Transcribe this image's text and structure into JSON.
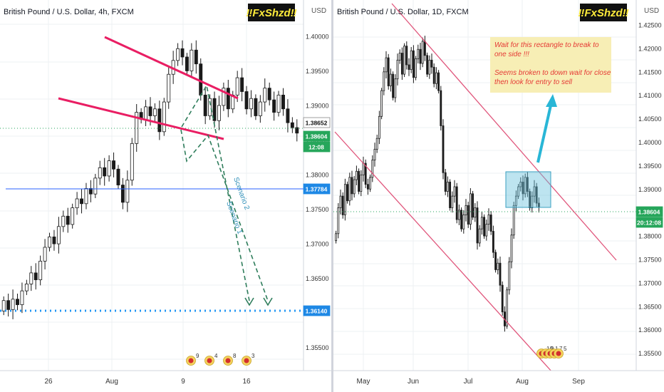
{
  "colors": {
    "candle": "#1a1a1a",
    "trendline": "#e91e63",
    "channel": "#e0557b",
    "scenario": "#2e7d5b",
    "blue_line": "#2962ff",
    "dotted_level": "#2196f3",
    "price_green": "#26a65b",
    "target_box": "#6cc4dd",
    "arrow": "#29b6d6",
    "note_bg": "#f7eeb5",
    "note_text": "#e53935",
    "watermark_bg": "#111111",
    "watermark_text": "#ffeb3b"
  },
  "left_panel": {
    "title": "British Pound / U.S. Dollar, 4h, FXCM",
    "watermark": "‼FxShzd‼",
    "currency": "USD",
    "scenario_1": "Scenario 1",
    "scenario_2": "Scenario 2",
    "event_badges": [
      "9",
      "4",
      "8",
      "3"
    ],
    "price_badges": [
      {
        "label": "1.38652",
        "kind": "white"
      },
      {
        "label": "1.38604",
        "kind": "green"
      },
      {
        "label": "12:08",
        "kind": "green"
      },
      {
        "label": "1.37784",
        "kind": "blue"
      },
      {
        "label": "1.36140",
        "kind": "blue"
      }
    ]
  },
  "right_panel": {
    "title": "British Pound / U.S. Dollar, 1D, FXCM",
    "watermark": "‼FxShzd‼",
    "currency": "USD",
    "note_lines": [
      "Wait for this rectangle to break to",
      "one side !!!",
      "",
      "Seems broken to down wait for close",
      "then look for entry to sell"
    ],
    "event_badges": [
      "10",
      "9",
      "1",
      "7",
      "5"
    ],
    "price_badges": [
      {
        "label": "1.38604",
        "kind": "green"
      },
      {
        "label": "20:12:08",
        "kind": "green"
      }
    ]
  },
  "chart_data": [
    {
      "type": "candlestick",
      "title": "British Pound / U.S. Dollar, 4h, FXCM",
      "x_ticks": [
        "26",
        "Aug",
        "9",
        "16"
      ],
      "y_ticks": [
        "1.40000",
        "1.39500",
        "1.39000",
        "1.38500",
        "1.38000",
        "1.37500",
        "1.37000",
        "1.36500",
        "1.36000",
        "1.35500"
      ],
      "ylim": [
        1.3525,
        1.404
      ],
      "levels": {
        "current": 1.38604,
        "prior": 1.38652,
        "horizontal_line": 1.37784,
        "target": 1.3614
      },
      "closes": [
        1.3618,
        1.3605,
        1.362,
        1.3612,
        1.3632,
        1.3642,
        1.3658,
        1.3648,
        1.3675,
        1.3695,
        1.371,
        1.37,
        1.3725,
        1.374,
        1.3728,
        1.3752,
        1.3765,
        1.3758,
        1.378,
        1.3772,
        1.3795,
        1.381,
        1.3798,
        1.382,
        1.3808,
        1.3785,
        1.376,
        1.3792,
        1.3845,
        1.389,
        1.388,
        1.3898,
        1.3885,
        1.3895,
        1.3862,
        1.3905,
        1.3945,
        1.3965,
        1.3982,
        1.397,
        1.395,
        1.398,
        1.396,
        1.3915,
        1.3885,
        1.391,
        1.3878,
        1.39,
        1.3925,
        1.3895,
        1.3915,
        1.394,
        1.392,
        1.3895,
        1.391,
        1.3885,
        1.3905,
        1.3925,
        1.3908,
        1.389,
        1.3915,
        1.3895,
        1.3875,
        1.3868,
        1.386
      ]
    },
    {
      "type": "candlestick",
      "title": "British Pound / U.S. Dollar, 1D, FXCM",
      "x_ticks": [
        "May",
        "Jun",
        "Jul",
        "Aug",
        "Sep"
      ],
      "y_ticks": [
        "1.42500",
        "1.42000",
        "1.41500",
        "1.41000",
        "1.40500",
        "1.40000",
        "1.39500",
        "1.39000",
        "1.38500",
        "1.38000",
        "1.37500",
        "1.37000",
        "1.36500",
        "1.36000",
        "1.35500"
      ],
      "ylim": [
        1.3525,
        1.4285
      ],
      "levels": {
        "current": 1.38604
      },
      "rectangle": {
        "low": 1.3858,
        "high": 1.3947
      },
      "closes": [
        1.3805,
        1.386,
        1.3885,
        1.3845,
        1.391,
        1.3875,
        1.3925,
        1.389,
        1.392,
        1.3938,
        1.3895,
        1.393,
        1.3955,
        1.391,
        1.39,
        1.3925,
        1.3962,
        1.3985,
        1.4008,
        1.4055,
        1.411,
        1.415,
        1.418,
        1.412,
        1.4145,
        1.4095,
        1.4135,
        1.4175,
        1.419,
        1.4145,
        1.4205,
        1.4165,
        1.4155,
        1.4195,
        1.4138,
        1.4178,
        1.4198,
        1.4168,
        1.4215,
        1.4185,
        1.4145,
        1.4175,
        1.416,
        1.4125,
        1.4148,
        1.411,
        1.4035,
        1.3935,
        1.3895,
        1.3915,
        1.386,
        1.3885,
        1.3905,
        1.3835,
        1.3855,
        1.3815,
        1.3845,
        1.3865,
        1.3825,
        1.389,
        1.384,
        1.386,
        1.3785,
        1.3815,
        1.384,
        1.38,
        1.3825,
        1.3845,
        1.381,
        1.3765,
        1.3728,
        1.3742,
        1.3695,
        1.3638,
        1.3608,
        1.3685,
        1.3745,
        1.3802,
        1.3865,
        1.3885,
        1.3905,
        1.3915,
        1.389,
        1.3925,
        1.3895,
        1.386,
        1.3885,
        1.3905,
        1.387,
        1.3862
      ]
    }
  ]
}
